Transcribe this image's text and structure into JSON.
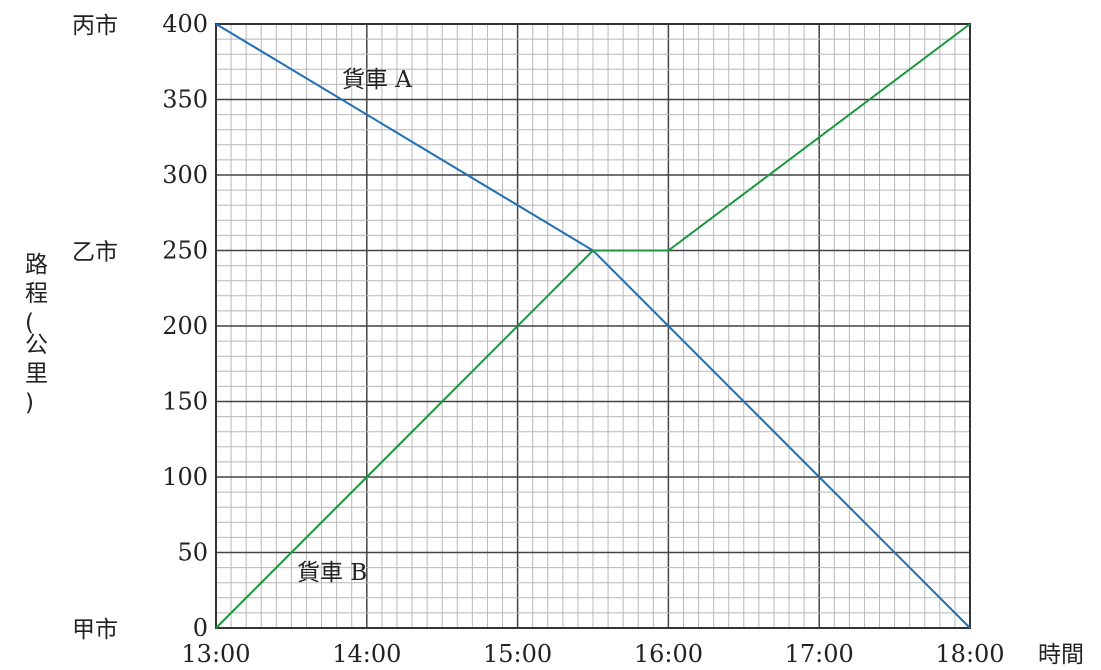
{
  "chart_data": {
    "type": "line",
    "title": "",
    "xlabel": "時間",
    "ylabel": "路程(公里)",
    "x_categories": [
      "13:00",
      "14:00",
      "15:00",
      "16:00",
      "17:00",
      "18:00"
    ],
    "xlim": [
      13,
      18
    ],
    "ylim": [
      0,
      400
    ],
    "y_ticks": [
      0,
      50,
      100,
      150,
      200,
      250,
      300,
      350,
      400
    ],
    "grid": true,
    "city_labels": [
      {
        "text": "甲市",
        "y": 0
      },
      {
        "text": "乙市",
        "y": 250
      },
      {
        "text": "丙市",
        "y": 400
      }
    ],
    "series": [
      {
        "name": "貨車 A",
        "color": "#1f6fb5",
        "x": [
          13,
          15.5,
          18
        ],
        "y": [
          400,
          250,
          0
        ]
      },
      {
        "name": "貨車 B",
        "color": "#1a9641",
        "x": [
          13,
          15.5,
          16,
          18
        ],
        "y": [
          0,
          250,
          250,
          400
        ]
      }
    ]
  }
}
